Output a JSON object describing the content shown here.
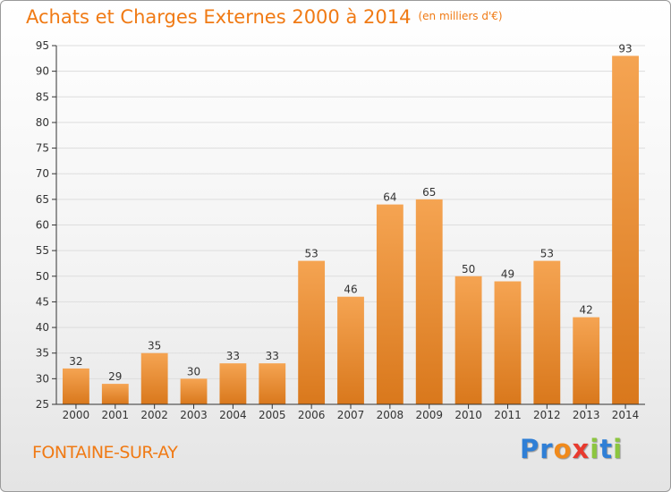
{
  "title": "Achats et Charges Externes 2000 à 2014",
  "subtitle": "(en milliers d'€)",
  "place": "FONTAINE-SUR-AY",
  "logo": {
    "text": "Proxiti",
    "letters": [
      {
        "ch": "P",
        "color": "#2f7fd6"
      },
      {
        "ch": "r",
        "color": "#2f7fd6"
      },
      {
        "ch": "o",
        "color": "#f08a1c"
      },
      {
        "ch": "x",
        "color": "#e83a2e"
      },
      {
        "ch": "i",
        "color": "#8cc63f"
      },
      {
        "ch": "t",
        "color": "#2f7fd6"
      },
      {
        "ch": "i",
        "color": "#8cc63f"
      }
    ]
  },
  "colors": {
    "accent": "#f07a14",
    "bar_top": "#f5a452",
    "bar_bottom": "#d9781c",
    "grid": "#dddddd",
    "axis": "#333333"
  },
  "chart_data": {
    "type": "bar",
    "categories": [
      "2000",
      "2001",
      "2002",
      "2003",
      "2004",
      "2005",
      "2006",
      "2007",
      "2008",
      "2009",
      "2010",
      "2011",
      "2012",
      "2013",
      "2014"
    ],
    "values": [
      32,
      29,
      35,
      30,
      33,
      33,
      53,
      46,
      64,
      65,
      50,
      49,
      53,
      42,
      93
    ],
    "ylim": [
      25,
      95
    ],
    "yticks": [
      25,
      30,
      35,
      40,
      45,
      50,
      55,
      60,
      65,
      70,
      75,
      80,
      85,
      90,
      95
    ],
    "grid": true,
    "title": "Achats et Charges Externes 2000 à 2014",
    "subtitle": "(en milliers d'€)",
    "xlabel": "",
    "ylabel": ""
  }
}
